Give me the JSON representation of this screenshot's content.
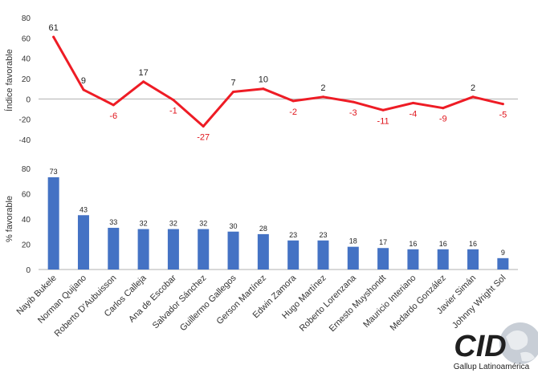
{
  "chart_data": [
    {
      "type": "line",
      "ylabel": "Índice favorable",
      "ylim": [
        -40,
        80
      ],
      "yticks": [
        -40,
        -20,
        0,
        20,
        40,
        60,
        80
      ],
      "grid": false,
      "zero_line": true,
      "color": "#ee1c25",
      "positive_label_color": "#222222",
      "negative_label_color": "#e0151c",
      "categories": [
        "Nayib Bukele",
        "Norman Quijano",
        "Roberto D'Aubuisson",
        "Carlos Calleja",
        "Ana de Escobar",
        "Salvador Sánchez",
        "Guillermo Gallegos",
        "Gerson Martínez",
        "Edwin Zamora",
        "Hugo Martínez",
        "Roberto Lorenzana",
        "Ernesto Muyshondt",
        "Mauricio Interiano",
        "Medardo González",
        "Javier Simán",
        "Johnny Wright Sol"
      ],
      "values": [
        61,
        9,
        -6,
        17,
        -1,
        -27,
        7,
        10,
        -2,
        2,
        -3,
        -11,
        -4,
        -9,
        2,
        -5
      ]
    },
    {
      "type": "bar",
      "ylabel": "% favorable",
      "ylim": [
        0,
        80
      ],
      "yticks": [
        0,
        20,
        40,
        60,
        80
      ],
      "grid": false,
      "color": "#4472c4",
      "categories": [
        "Nayib Bukele",
        "Norman Quijano",
        "Roberto D'Aubuisson",
        "Carlos Calleja",
        "Ana de Escobar",
        "Salvador Sánchez",
        "Guillermo Gallegos",
        "Gerson Martínez",
        "Edwin Zamora",
        "Hugo Martínez",
        "Roberto Lorenzana",
        "Ernesto Muyshondt",
        "Mauricio Interiano",
        "Medardo González",
        "Javier Simán",
        "Johnny Wright Sol"
      ],
      "values": [
        73,
        43,
        33,
        32,
        32,
        32,
        30,
        28,
        23,
        23,
        18,
        17,
        16,
        16,
        16,
        9
      ]
    }
  ],
  "logo": {
    "text": "CID",
    "subtitle": "Gallup Latinoamérica"
  }
}
